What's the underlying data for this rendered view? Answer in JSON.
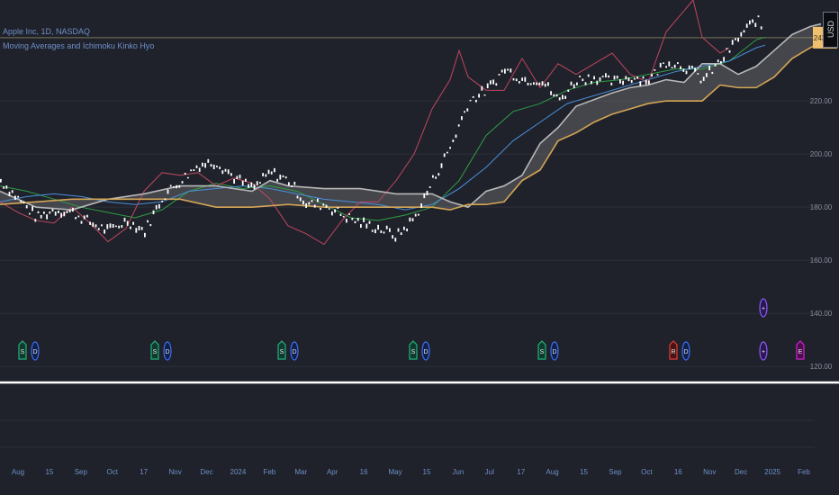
{
  "legend": {
    "symbol": "Apple Inc, 1D, NASDAQ",
    "indicator": "Moving Averages and Ichimoku Kinko Hyo"
  },
  "currency": "USD",
  "colors": {
    "background": "#1f222b",
    "grid": "#2c303b",
    "candles": "#ffffff",
    "ma_short": "#2f9e44",
    "ma_long": "#4a90d9",
    "lagging_span": "#c0465e",
    "span_a": "#b7b7b7",
    "span_b": "#d4a555",
    "cloud": "#8a8a8a",
    "price_label": "#f0c070"
  },
  "chart_data": {
    "type": "line",
    "title": "",
    "y_ticks": [
      "220.00",
      "200.00",
      "180.00",
      "160.00",
      "140.00",
      "120.00"
    ],
    "x_ticks": [
      "Aug",
      "15",
      "Sep",
      "Oct",
      "17",
      "Nov",
      "Dec",
      "2024",
      "Feb",
      "Mar",
      "Apr",
      "16",
      "May",
      "15",
      "Jun",
      "Jul",
      "17",
      "Aug",
      "15",
      "Sep",
      "Oct",
      "16",
      "Nov",
      "Dec",
      "2025",
      "Feb"
    ],
    "ylim": [
      115,
      258
    ],
    "price_label": "243.85",
    "signals": [
      {
        "label": "S",
        "type": "S",
        "period": 0
      },
      {
        "label": "D",
        "type": "D",
        "period": 0
      },
      {
        "label": "S",
        "type": "S",
        "period": 1
      },
      {
        "label": "D",
        "type": "D",
        "period": 1
      },
      {
        "label": "S",
        "type": "S",
        "period": 2
      },
      {
        "label": "D",
        "type": "D",
        "period": 2
      },
      {
        "label": "S",
        "type": "S",
        "period": 3
      },
      {
        "label": "D",
        "type": "D",
        "period": 3
      },
      {
        "label": "S",
        "type": "S",
        "period": 4
      },
      {
        "label": "D",
        "type": "D",
        "period": 4
      },
      {
        "label": "R",
        "type": "R",
        "period": 5
      },
      {
        "label": "D",
        "type": "D",
        "period": 5
      },
      {
        "label": "+",
        "type": "plus",
        "period": 6
      },
      {
        "label": "+",
        "type": "plus2",
        "period": 6
      },
      {
        "label": "E",
        "type": "E",
        "period": 7
      }
    ],
    "series": [
      {
        "values": [
          [
            0,
            190
          ],
          [
            20,
            183
          ],
          [
            40,
            176
          ],
          [
            60,
            179
          ],
          [
            80,
            178
          ],
          [
            100,
            174
          ],
          [
            120,
            171
          ],
          [
            140,
            175
          ],
          [
            160,
            171
          ],
          [
            180,
            184
          ],
          [
            200,
            190
          ],
          [
            220,
            196
          ],
          [
            240,
            197
          ],
          [
            260,
            191
          ],
          [
            280,
            187
          ],
          [
            300,
            193
          ],
          [
            320,
            190
          ],
          [
            340,
            181
          ],
          [
            360,
            181
          ],
          [
            380,
            177
          ],
          [
            400,
            174
          ],
          [
            420,
            172
          ],
          [
            440,
            169
          ],
          [
            460,
            176
          ],
          [
            480,
            190
          ],
          [
            500,
            203
          ],
          [
            520,
            220
          ],
          [
            540,
            224
          ],
          [
            560,
            232
          ],
          [
            580,
            228
          ],
          [
            600,
            228
          ],
          [
            620,
            220
          ],
          [
            640,
            228
          ],
          [
            660,
            229
          ],
          [
            680,
            227
          ],
          [
            700,
            229
          ],
          [
            720,
            228
          ],
          [
            740,
            235
          ],
          [
            760,
            233
          ],
          [
            780,
            228
          ],
          [
            800,
            235
          ],
          [
            820,
            244
          ],
          [
            840,
            251
          ],
          [
            850,
            244
          ]
        ]
      },
      {
        "values": [
          [
            0,
            188
          ],
          [
            30,
            186
          ],
          [
            60,
            183
          ],
          [
            90,
            180
          ],
          [
            120,
            178
          ],
          [
            150,
            176
          ],
          [
            180,
            179
          ],
          [
            210,
            186
          ],
          [
            240,
            189
          ],
          [
            270,
            187
          ],
          [
            300,
            188
          ],
          [
            330,
            186
          ],
          [
            360,
            181
          ],
          [
            390,
            176
          ],
          [
            420,
            175
          ],
          [
            450,
            177
          ],
          [
            480,
            180
          ],
          [
            510,
            190
          ],
          [
            540,
            207
          ],
          [
            570,
            216
          ],
          [
            600,
            219
          ],
          [
            630,
            224
          ],
          [
            660,
            227
          ],
          [
            690,
            228
          ],
          [
            720,
            230
          ],
          [
            750,
            232
          ],
          [
            780,
            232
          ],
          [
            810,
            235
          ],
          [
            840,
            243
          ],
          [
            850,
            244
          ]
        ]
      },
      {
        "values": [
          [
            0,
            182
          ],
          [
            30,
            184
          ],
          [
            60,
            185
          ],
          [
            90,
            184
          ],
          [
            120,
            182
          ],
          [
            150,
            181
          ],
          [
            180,
            182
          ],
          [
            210,
            186
          ],
          [
            240,
            187
          ],
          [
            270,
            188
          ],
          [
            300,
            187
          ],
          [
            330,
            185
          ],
          [
            360,
            183
          ],
          [
            390,
            182
          ],
          [
            420,
            181
          ],
          [
            450,
            179
          ],
          [
            480,
            181
          ],
          [
            510,
            187
          ],
          [
            540,
            195
          ],
          [
            570,
            205
          ],
          [
            600,
            212
          ],
          [
            630,
            219
          ],
          [
            660,
            222
          ],
          [
            690,
            225
          ],
          [
            720,
            228
          ],
          [
            750,
            231
          ],
          [
            780,
            233
          ],
          [
            810,
            235
          ],
          [
            840,
            240
          ],
          [
            850,
            241
          ]
        ]
      },
      {
        "values": [
          [
            0,
            182
          ],
          [
            20,
            178
          ],
          [
            40,
            175
          ],
          [
            60,
            174
          ],
          [
            80,
            180
          ],
          [
            100,
            174
          ],
          [
            120,
            167
          ],
          [
            140,
            172
          ],
          [
            160,
            186
          ],
          [
            180,
            193
          ],
          [
            200,
            192
          ],
          [
            220,
            193
          ],
          [
            240,
            188
          ],
          [
            260,
            191
          ],
          [
            280,
            189
          ],
          [
            300,
            183
          ],
          [
            320,
            173
          ],
          [
            340,
            170
          ],
          [
            360,
            166
          ],
          [
            380,
            175
          ],
          [
            400,
            182
          ],
          [
            420,
            182
          ],
          [
            440,
            190
          ],
          [
            460,
            200
          ],
          [
            480,
            217
          ],
          [
            500,
            228
          ],
          [
            510,
            239
          ],
          [
            520,
            229
          ],
          [
            540,
            224
          ],
          [
            560,
            224
          ],
          [
            580,
            236
          ],
          [
            600,
            225
          ],
          [
            620,
            234
          ],
          [
            640,
            230
          ],
          [
            660,
            234
          ],
          [
            680,
            238
          ],
          [
            700,
            230
          ],
          [
            720,
            227
          ],
          [
            740,
            246
          ],
          [
            760,
            254
          ],
          [
            770,
            258
          ],
          [
            780,
            244
          ],
          [
            800,
            238
          ],
          [
            810,
            240
          ]
        ]
      },
      {
        "values": [
          [
            0,
            186
          ],
          [
            40,
            180
          ],
          [
            80,
            179
          ],
          [
            120,
            183
          ],
          [
            160,
            185
          ],
          [
            200,
            188
          ],
          [
            240,
            188
          ],
          [
            280,
            186
          ],
          [
            300,
            190
          ],
          [
            320,
            188
          ],
          [
            360,
            187
          ],
          [
            400,
            187
          ],
          [
            420,
            186
          ],
          [
            440,
            185
          ],
          [
            460,
            185
          ],
          [
            480,
            185
          ],
          [
            500,
            182
          ],
          [
            520,
            180
          ],
          [
            540,
            186
          ],
          [
            560,
            188
          ],
          [
            580,
            192
          ],
          [
            600,
            204
          ],
          [
            620,
            210
          ],
          [
            640,
            218
          ],
          [
            680,
            223
          ],
          [
            700,
            225
          ],
          [
            720,
            226
          ],
          [
            740,
            228
          ],
          [
            760,
            227
          ],
          [
            780,
            234
          ],
          [
            800,
            234
          ],
          [
            820,
            230
          ],
          [
            840,
            233
          ],
          [
            860,
            239
          ],
          [
            880,
            245
          ],
          [
            900,
            248
          ],
          [
            912,
            249
          ]
        ]
      },
      {
        "values": [
          [
            0,
            181
          ],
          [
            40,
            182
          ],
          [
            80,
            183
          ],
          [
            120,
            183
          ],
          [
            160,
            183
          ],
          [
            200,
            183
          ],
          [
            240,
            180
          ],
          [
            280,
            180
          ],
          [
            320,
            181
          ],
          [
            360,
            180
          ],
          [
            400,
            180
          ],
          [
            440,
            180
          ],
          [
            480,
            180
          ],
          [
            500,
            179
          ],
          [
            520,
            181
          ],
          [
            540,
            181
          ],
          [
            560,
            182
          ],
          [
            580,
            190
          ],
          [
            600,
            194
          ],
          [
            620,
            205
          ],
          [
            640,
            208
          ],
          [
            660,
            212
          ],
          [
            680,
            215
          ],
          [
            700,
            217
          ],
          [
            720,
            219
          ],
          [
            740,
            220
          ],
          [
            780,
            220
          ],
          [
            800,
            226
          ],
          [
            820,
            225
          ],
          [
            840,
            225
          ],
          [
            860,
            229
          ],
          [
            880,
            236
          ],
          [
            900,
            240
          ],
          [
            912,
            242
          ]
        ]
      }
    ]
  }
}
